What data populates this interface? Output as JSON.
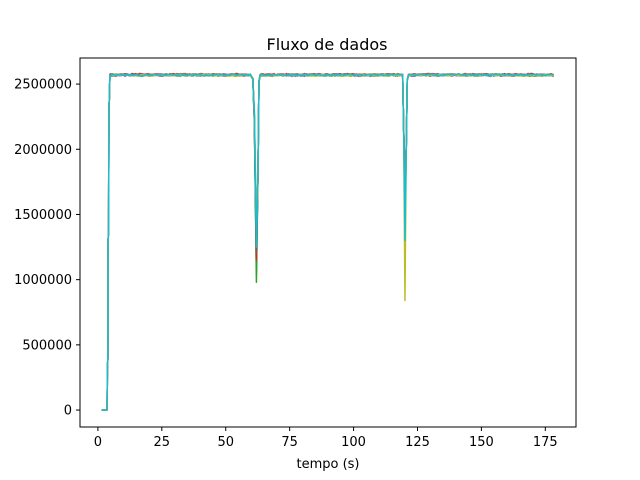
{
  "chart_data": {
    "type": "line",
    "title": "Fluxo de dados",
    "xlabel": "tempo (s)",
    "ylabel": "",
    "xlim": [
      -7,
      187
    ],
    "ylim": [
      -130000,
      2700000
    ],
    "xticks": [
      0,
      25,
      50,
      75,
      100,
      125,
      150,
      175
    ],
    "yticks": [
      0,
      500000,
      1000000,
      1500000,
      2000000,
      2500000
    ],
    "xtick_labels": [
      "0",
      "25",
      "50",
      "75",
      "100",
      "125",
      "150",
      "175"
    ],
    "ytick_labels": [
      "0",
      "500000",
      "1000000",
      "1500000",
      "2000000",
      "2500000"
    ],
    "grid": false,
    "legend": "none",
    "series": [
      {
        "color": "#1f77b4",
        "dip1": 1050000,
        "dip2": 1400000,
        "level": 2570000
      },
      {
        "color": "#ff7f0e",
        "dip1": 1100000,
        "dip2": 1500000,
        "level": 2572000
      },
      {
        "color": "#2ca02c",
        "dip1": 980000,
        "dip2": 1600000,
        "level": 2568000
      },
      {
        "color": "#d62728",
        "dip1": 1150000,
        "dip2": 1700000,
        "level": 2574000
      },
      {
        "color": "#9467bd",
        "dip1": 1250000,
        "dip2": 1900000,
        "level": 2566000
      },
      {
        "color": "#8c564b",
        "dip1": 1200000,
        "dip2": 1650000,
        "level": 2571000
      },
      {
        "color": "#e377c2",
        "dip1": 1350000,
        "dip2": 1550000,
        "level": 2569000
      },
      {
        "color": "#7f7f7f",
        "dip1": 1300000,
        "dip2": 1750000,
        "level": 2573000
      },
      {
        "color": "#bcbd22",
        "dip1": 1400000,
        "dip2": 840000,
        "level": 2567000
      },
      {
        "color": "#17becf",
        "dip1": 1250000,
        "dip2": 1300000,
        "level": 2570000
      }
    ],
    "x_end": 178
  }
}
